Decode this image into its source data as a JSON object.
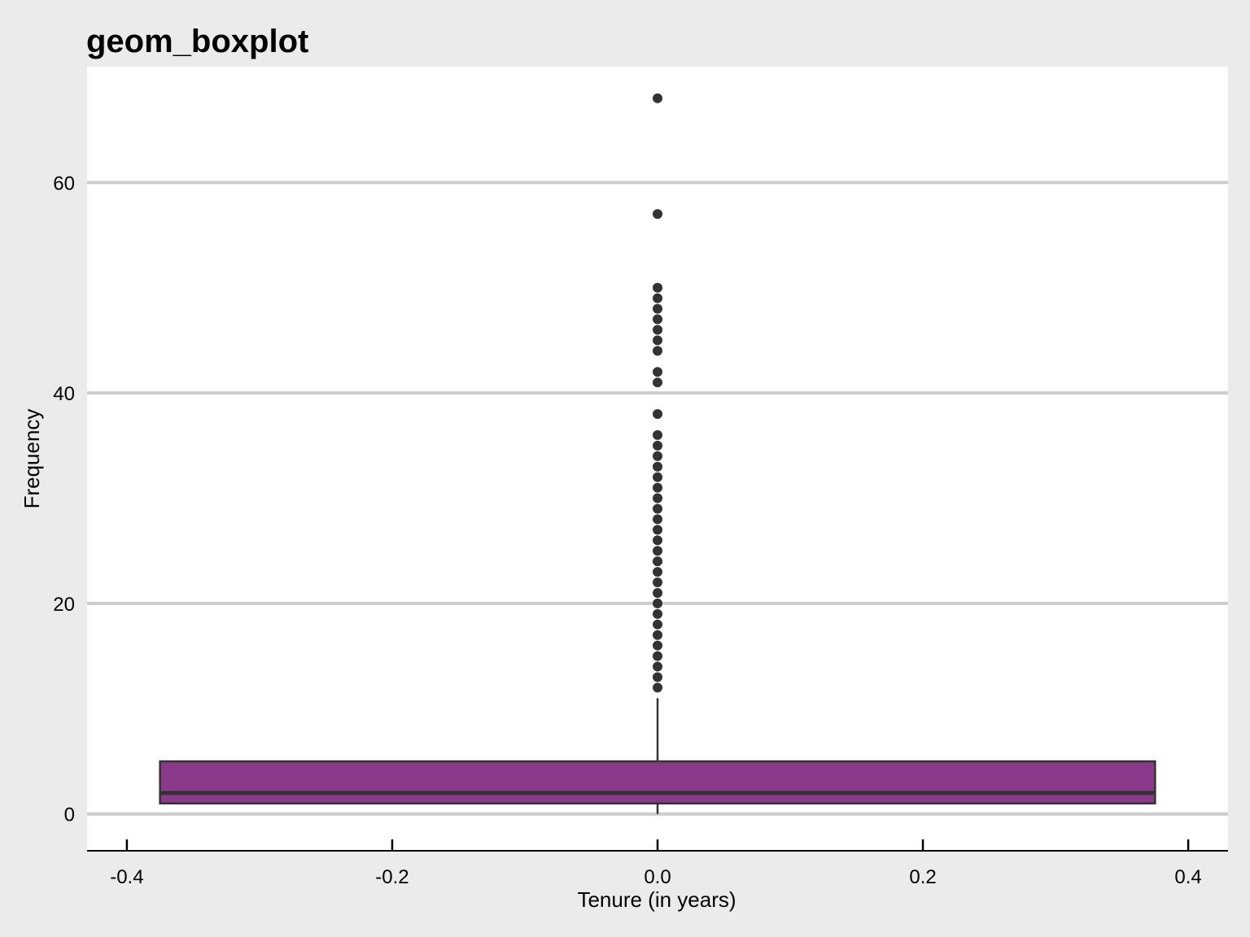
{
  "chart_data": {
    "type": "boxplot",
    "title": "geom_boxplot",
    "xlabel": "Tenure (in years)",
    "ylabel": "Frequency",
    "xlim": [
      -0.43,
      0.43
    ],
    "ylim": [
      -3.5,
      71
    ],
    "x_ticks": [
      -0.4,
      -0.2,
      0.0,
      0.2,
      0.4
    ],
    "x_tick_labels": [
      "-0.4",
      "-0.2",
      "0.0",
      "0.2",
      "0.4"
    ],
    "y_ticks": [
      0,
      20,
      40,
      60
    ],
    "y_tick_labels": [
      "0",
      "20",
      "40",
      "60"
    ],
    "grid": {
      "horizontal": true,
      "vertical": false
    },
    "box": {
      "x_center": 0.0,
      "x_left": -0.375,
      "x_right": 0.375,
      "whisker_low": 0,
      "q1": 1,
      "median": 2,
      "q3": 5,
      "whisker_high": 11,
      "fill": "#8b3a8b",
      "line_color": "#333333"
    },
    "outliers": [
      12,
      13,
      14,
      15,
      16,
      17,
      18,
      19,
      20,
      21,
      22,
      23,
      24,
      25,
      26,
      27,
      28,
      29,
      30,
      31,
      32,
      33,
      34,
      35,
      36,
      38,
      41,
      42,
      44,
      45,
      46,
      47,
      48,
      49,
      50,
      57,
      68
    ],
    "colors": {
      "background": "#ebebeb",
      "panel": "#ffffff",
      "grid": "#cccccc",
      "point": "#333333",
      "axis": "#000000"
    }
  }
}
